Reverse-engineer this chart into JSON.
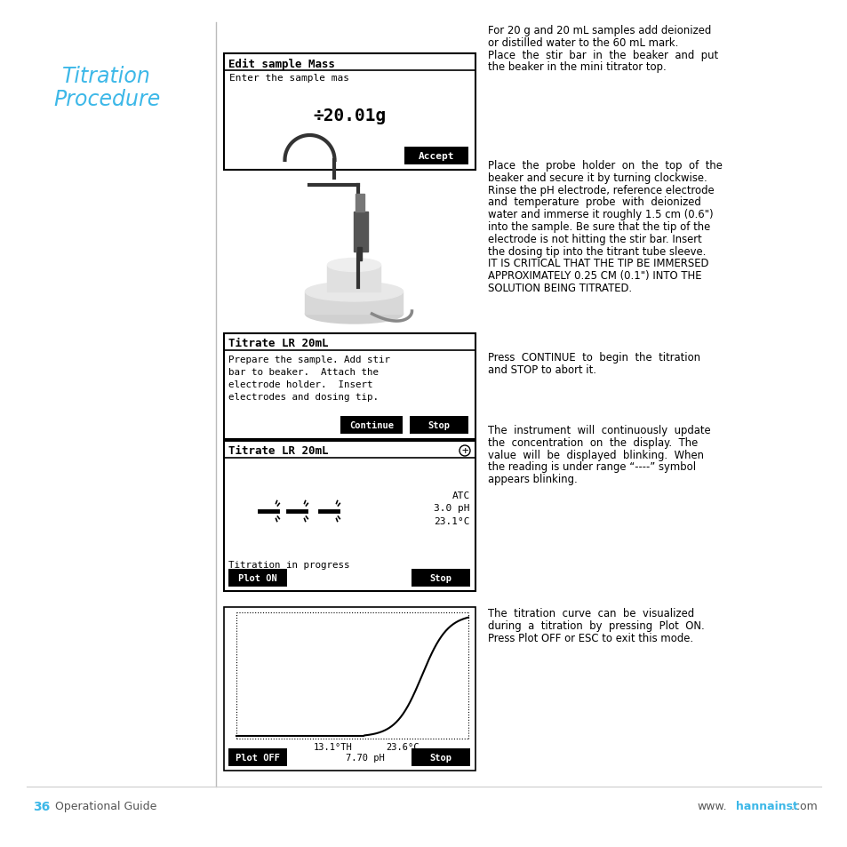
{
  "title_line1": "Titration",
  "title_line2": "Procedure",
  "title_color": "#3db8e8",
  "bg_color": "#ffffff",
  "page_number": "36",
  "page_label": "Operational Guide",
  "website_prefix": "www.",
  "website_highlight": "hannainst",
  "website_suffix": ".com",
  "screen1_title": "Edit sample Mass",
  "screen1_subtitle": "Enter the sample mas",
  "screen1_value": "÷20.01g",
  "screen1_button": "Accept",
  "screen2_title": "Titrate LR 20mL",
  "screen2_text_lines": [
    "Prepare the sample. Add stir",
    "bar to beaker.  Attach the",
    "electrode holder.  Insert",
    "electrodes and dosing tip."
  ],
  "screen2_btn1": "Continue",
  "screen2_btn2": "Stop",
  "screen3_title": "Titrate LR 20mL",
  "screen3_crosshair": "⊕",
  "screen3_label1": "ATC",
  "screen3_label2": "3.0 pH",
  "screen3_label3": "23.1°C",
  "screen3_progress": "Titration in progress",
  "screen3_btn1": "Plot ON",
  "screen3_btn2": "Stop",
  "screen4_info1": "13.1°TH",
  "screen4_info2": "7.70 pH",
  "screen4_info3": "23.6°C",
  "screen4_btn1": "Plot OFF",
  "screen4_btn2": "Stop",
  "para1_lines": [
    "For 20 g and 20 mL samples add deionized",
    "or distilled water to the 60 mL mark.",
    "Place  the  stir  bar  in  the  beaker  and  put",
    "the beaker in the mini titrator top."
  ],
  "para2_lines": [
    "Place  the  probe  holder  on  the  top  of  the",
    "beaker and secure it by turning clockwise.",
    "Rinse the pH electrode, reference electrode",
    "and  temperature  probe  with  deionized",
    "water and immerse it roughly 1.5 cm (0.6\")",
    "into the sample. Be sure that the tip of the",
    "electrode is not hitting the stir bar. Insert",
    "the dosing tip into the titrant tube sleeve.",
    "IT IS CRITICAL THAT THE TIP BE IMMERSED",
    "APPROXIMATELY 0.25 CM (0.1\") INTO THE",
    "SOLUTION BEING TITRATED."
  ],
  "para3_lines": [
    "Press  CONTINUE  to  begin  the  titration",
    "and STOP to abort it."
  ],
  "para4_lines": [
    "The  instrument  will  continuously  update",
    "the  concentration  on  the  display.  The",
    "value  will  be  displayed  blinking.  When",
    "the reading is under range “----” symbol",
    "appears blinking."
  ],
  "para5_lines": [
    "The  titration  curve  can  be  visualized",
    "during  a  titration  by  pressing  Plot  ON.",
    "Press Plot OFF or ESC to exit this mode."
  ]
}
